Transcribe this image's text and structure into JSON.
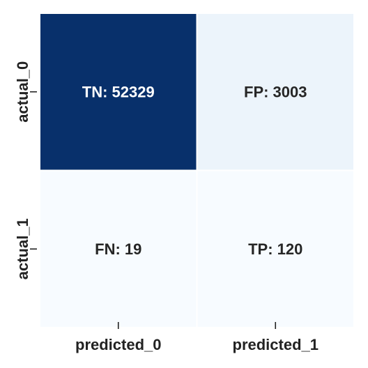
{
  "chart_data": {
    "type": "heatmap",
    "title": "",
    "xlabel": "",
    "ylabel": "",
    "x_categories": [
      "predicted_0",
      "predicted_1"
    ],
    "y_categories": [
      "actual_0",
      "actual_1"
    ],
    "values": [
      [
        52329,
        3003
      ],
      [
        19,
        120
      ]
    ],
    "cell_labels": [
      [
        "TN: 52329",
        "FP: 3003"
      ],
      [
        "FN: 19",
        "TP: 120"
      ]
    ],
    "colormap": "Blues",
    "color_range": [
      19,
      52329
    ],
    "colorbar": false,
    "grid": false,
    "colors": {
      "low": "#f7fbff",
      "high": "#08306b",
      "cell_border": "#ffffff",
      "text_dark": "#262626",
      "text_light": "#ffffff"
    }
  }
}
